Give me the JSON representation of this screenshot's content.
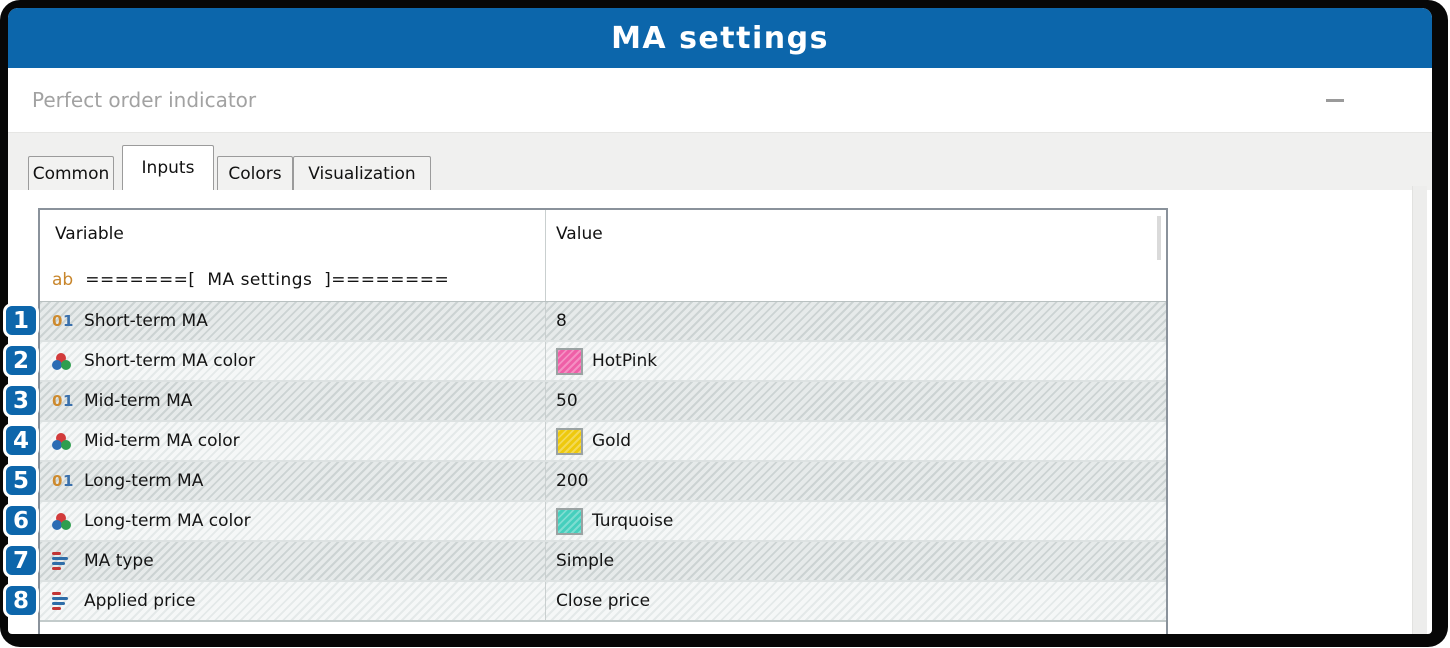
{
  "banner": {
    "title": "MA settings"
  },
  "dialog": {
    "title": "Perfect order indicator"
  },
  "tabs": [
    {
      "label": "Common",
      "active": false
    },
    {
      "label": "Inputs",
      "active": true
    },
    {
      "label": "Colors",
      "active": false
    },
    {
      "label": "Visualization",
      "active": false
    }
  ],
  "table": {
    "columns": [
      "Variable",
      "Value"
    ],
    "section_row": {
      "icon_label": "ab",
      "text": "=======[  MA settings  ]========"
    },
    "numeric_icon": {
      "digit_zero": "0",
      "digit_one": "1"
    },
    "rows": [
      {
        "num": "1",
        "type": "int",
        "variable": "Short-term MA",
        "value": "8"
      },
      {
        "num": "2",
        "type": "color",
        "variable": "Short-term MA color",
        "value": "HotPink",
        "swatch": "#ef5fa7"
      },
      {
        "num": "3",
        "type": "int",
        "variable": "Mid-term MA",
        "value": "50"
      },
      {
        "num": "4",
        "type": "color",
        "variable": "Mid-term MA color",
        "value": "Gold",
        "swatch": "#eec90c"
      },
      {
        "num": "5",
        "type": "int",
        "variable": "Long-term MA",
        "value": "200"
      },
      {
        "num": "6",
        "type": "color",
        "variable": "Long-term MA color",
        "value": "Turquoise",
        "swatch": "#45cfbd"
      },
      {
        "num": "7",
        "type": "enum",
        "variable": "MA type",
        "value": "Simple"
      },
      {
        "num": "8",
        "type": "enum",
        "variable": "Applied price",
        "value": "Close price"
      }
    ]
  },
  "colors": {
    "banner_blue": "#0c66ab",
    "badge_blue": "#0d66ab",
    "hotpink": "#ef5fa7",
    "gold": "#eec90c",
    "turquoise": "#45cfbd"
  }
}
